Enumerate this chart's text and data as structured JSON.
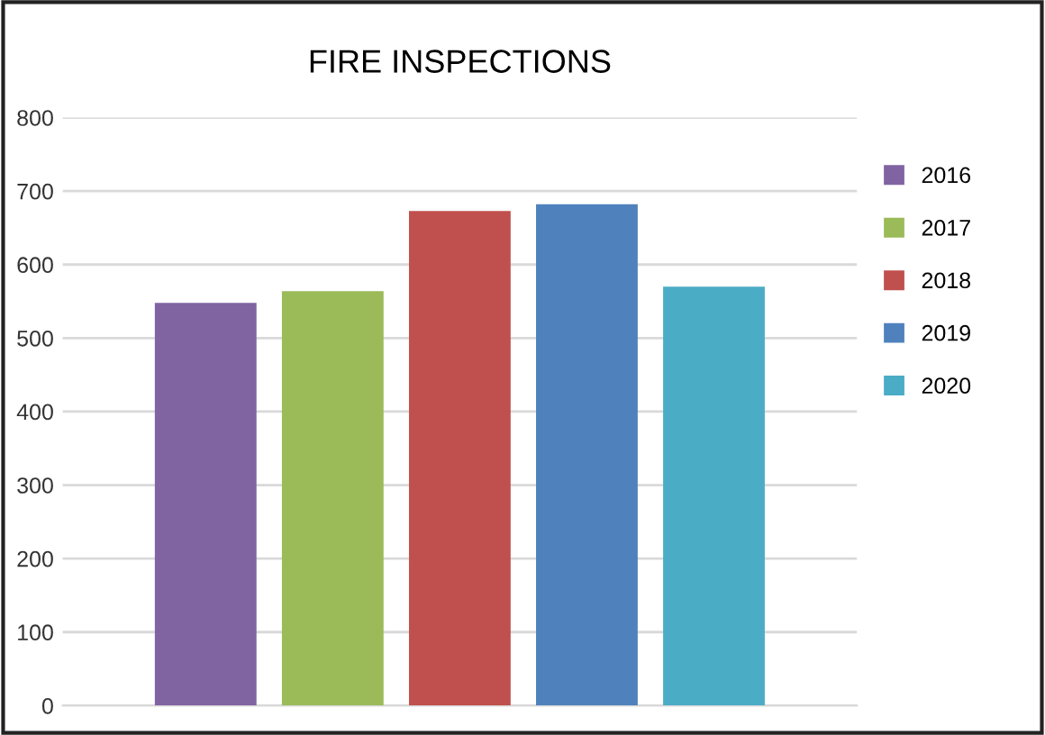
{
  "chart_data": {
    "type": "bar",
    "title": "FIRE INSPECTIONS",
    "categories": [
      null
    ],
    "series": [
      {
        "name": "2016",
        "color": "#8064a2",
        "values": [
          548
        ]
      },
      {
        "name": "2017",
        "color": "#9bbb59",
        "values": [
          564
        ]
      },
      {
        "name": "2018",
        "color": "#c0504d",
        "values": [
          673
        ]
      },
      {
        "name": "2019",
        "color": "#4f81bd",
        "values": [
          682
        ]
      },
      {
        "name": "2020",
        "color": "#4bacc6",
        "values": [
          570
        ]
      }
    ],
    "ylim": [
      0,
      800
    ],
    "yticks": [
      0,
      100,
      200,
      300,
      400,
      500,
      600,
      700,
      800
    ],
    "grid": "y",
    "legend": "right"
  }
}
